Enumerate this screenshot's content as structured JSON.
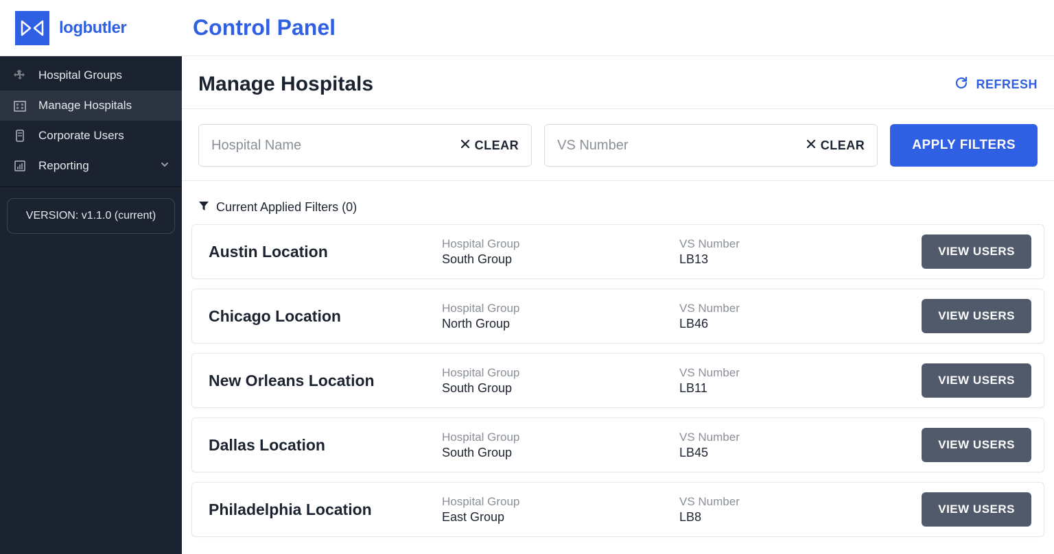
{
  "brand": {
    "name": "logbutler"
  },
  "header": {
    "title": "Control Panel"
  },
  "sidebar": {
    "items": [
      {
        "label": "Hospital Groups",
        "active": false,
        "expandable": false
      },
      {
        "label": "Manage Hospitals",
        "active": true,
        "expandable": false
      },
      {
        "label": "Corporate Users",
        "active": false,
        "expandable": false
      },
      {
        "label": "Reporting",
        "active": false,
        "expandable": true
      }
    ],
    "version": "VERSION: v1.1.0 (current)"
  },
  "page": {
    "title": "Manage Hospitals",
    "refresh_label": "REFRESH"
  },
  "filters": {
    "hospital_name": {
      "placeholder": "Hospital Name",
      "value": "",
      "clear_label": "CLEAR"
    },
    "vs_number": {
      "placeholder": "VS Number",
      "value": "",
      "clear_label": "CLEAR"
    },
    "apply_label": "APPLY FILTERS",
    "summary_label": "Current Applied Filters (0)"
  },
  "columns": {
    "group_label": "Hospital Group",
    "vs_label": "VS Number",
    "action_label": "VIEW USERS"
  },
  "hospitals": [
    {
      "name": "Austin Location",
      "group": "South Group",
      "vs": "LB13"
    },
    {
      "name": "Chicago Location",
      "group": "North Group",
      "vs": "LB46"
    },
    {
      "name": "New Orleans Location",
      "group": "South Group",
      "vs": "LB11"
    },
    {
      "name": "Dallas Location",
      "group": "South Group",
      "vs": "LB45"
    },
    {
      "name": "Philadelphia Location",
      "group": "East Group",
      "vs": "LB8"
    }
  ],
  "colors": {
    "primary": "#2f5fe2",
    "sidebar_bg": "#1c2330",
    "sidebar_active": "#2c3441",
    "muted_text": "#8a8f98",
    "border": "#e6e8eb",
    "button_gray": "#505a6b"
  }
}
